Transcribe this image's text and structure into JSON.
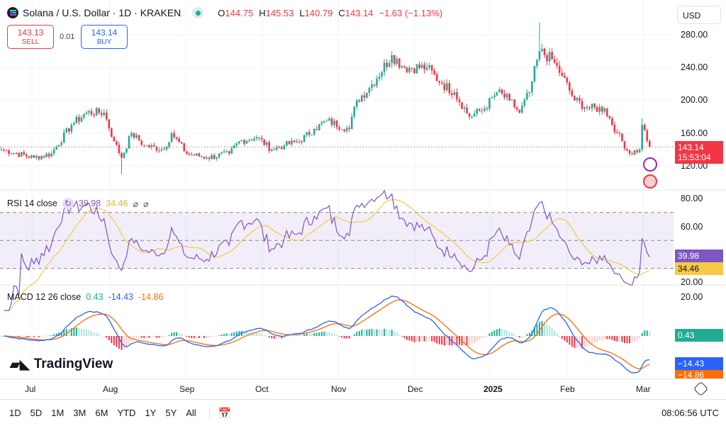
{
  "header": {
    "symbol": "Solana / U.S. Dollar · 1D · KRAKEN",
    "o_label": "O",
    "o": "144.75",
    "h_label": "H",
    "h": "145.53",
    "l_label": "L",
    "l": "140.79",
    "c_label": "C",
    "c": "143.14",
    "change": "−1.63 (−1.13%)"
  },
  "trade": {
    "sell_price": "143.13",
    "sell_label": "SELL",
    "spread": "0.01",
    "buy_price": "143.14",
    "buy_label": "BUY"
  },
  "currency": "USD",
  "price_tag": {
    "price": "143.14",
    "countdown": "15:53:04"
  },
  "rsi": {
    "label": "RSI 14 close",
    "value": "39.98",
    "ma": "34.46",
    "na1": "⌀",
    "na2": "⌀"
  },
  "macd": {
    "label": "MACD 12 26 close",
    "hist": "0.43",
    "macd": "-14.43",
    "signal": "-14.86",
    "macd_tag": "−14.43",
    "signal_tag": "−14.86"
  },
  "brand": "TradingView",
  "ranges": [
    "1D",
    "5D",
    "1M",
    "3M",
    "6M",
    "YTD",
    "1Y",
    "5Y",
    "All"
  ],
  "clock": "08:06:56 UTC",
  "colors": {
    "up": "#22ab94",
    "down": "#f23645",
    "rsi": "#7e57c2",
    "rsi_ma": "#f7c948",
    "macd": "#2962ff",
    "signal": "#ff6d00"
  },
  "chart_data": {
    "type": "candlestick",
    "title": "Solana / U.S. Dollar · 1D · KRAKEN",
    "start_date": "2024-06-18",
    "x_ticks": [
      "Jul",
      "Aug",
      "Sep",
      "Oct",
      "Nov",
      "Dec",
      "2025",
      "Feb",
      "Mar"
    ],
    "y_ticks": [
      "280.00",
      "240.00",
      "200.00",
      "160.00",
      "120.00"
    ],
    "ylim": [
      95,
      300
    ],
    "approx_closes_by_day": [
      [
        0,
        140
      ],
      [
        13,
        130
      ],
      [
        20,
        135
      ],
      [
        28,
        170
      ],
      [
        34,
        185
      ],
      [
        41,
        185
      ],
      [
        45,
        150
      ],
      [
        48,
        130
      ],
      [
        52,
        160
      ],
      [
        57,
        145
      ],
      [
        65,
        140
      ],
      [
        68,
        160
      ],
      [
        74,
        135
      ],
      [
        82,
        130
      ],
      [
        91,
        135
      ],
      [
        95,
        150
      ],
      [
        102,
        155
      ],
      [
        108,
        140
      ],
      [
        113,
        145
      ],
      [
        119,
        150
      ],
      [
        125,
        165
      ],
      [
        130,
        175
      ],
      [
        139,
        165
      ],
      [
        142,
        200
      ],
      [
        147,
        215
      ],
      [
        156,
        255
      ],
      [
        161,
        240
      ],
      [
        170,
        240
      ],
      [
        176,
        220
      ],
      [
        181,
        210
      ],
      [
        187,
        180
      ],
      [
        193,
        190
      ],
      [
        198,
        210
      ],
      [
        203,
        200
      ],
      [
        207,
        185
      ],
      [
        211,
        210
      ],
      [
        215,
        260
      ],
      [
        220,
        250
      ],
      [
        224,
        230
      ],
      [
        229,
        200
      ],
      [
        235,
        190
      ],
      [
        241,
        190
      ],
      [
        246,
        160
      ],
      [
        251,
        135
      ],
      [
        255,
        140
      ],
      [
        256,
        170
      ],
      [
        259,
        143.14
      ]
    ],
    "rsi_ticks": [
      "80.00",
      "60.00",
      "20.00"
    ],
    "rsi_bands": [
      70,
      50,
      30
    ],
    "macd_ticks": [
      "20.00"
    ]
  }
}
